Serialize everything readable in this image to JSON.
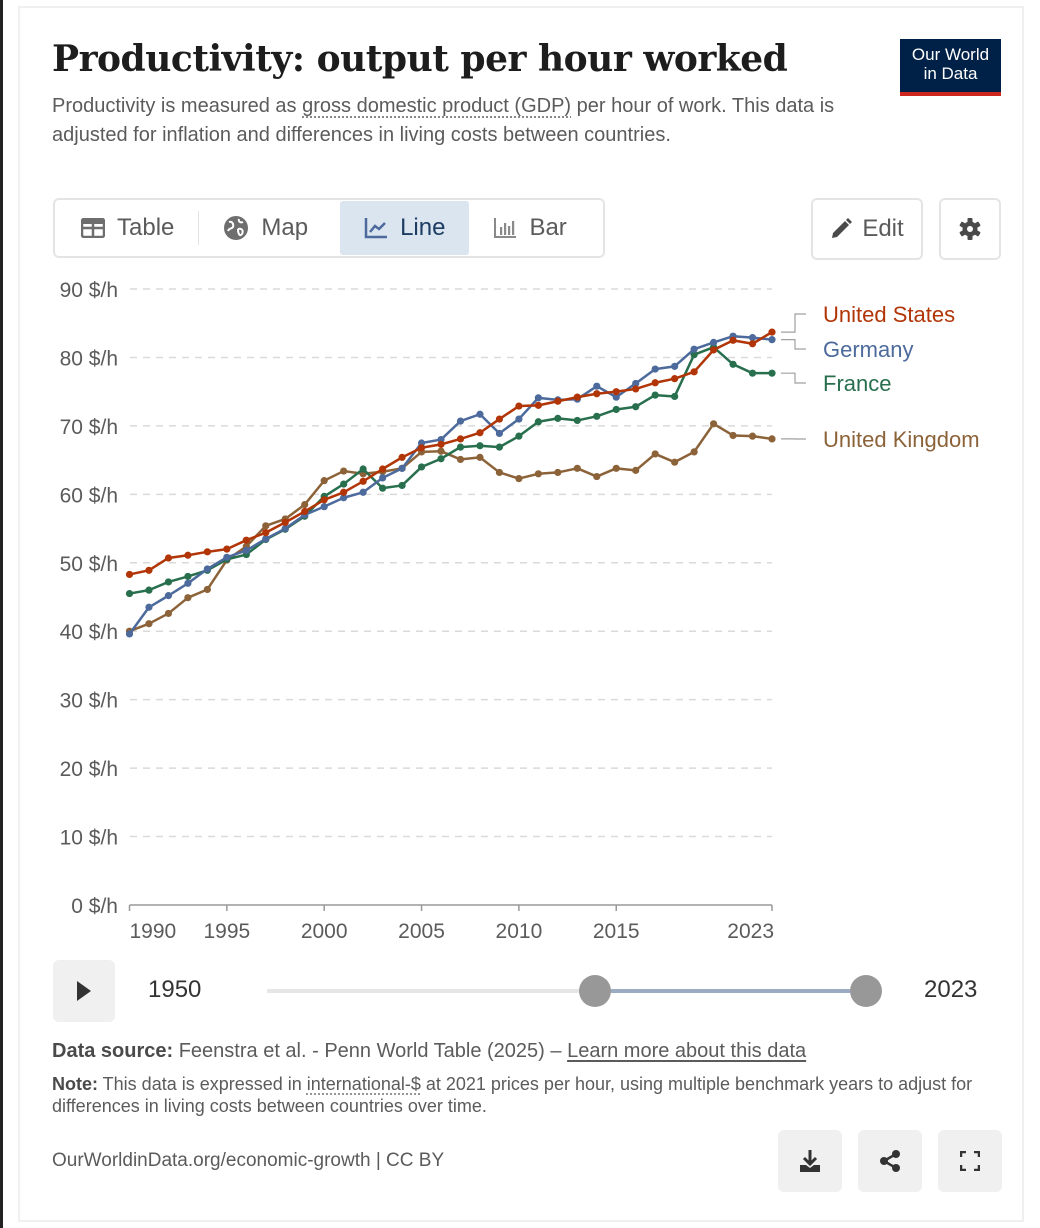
{
  "header": {
    "title": "Productivity: output per hour worked",
    "subtitle_pre": "Productivity is measured as ",
    "subtitle_link": "gross domestic product (GDP)",
    "subtitle_post": " per hour of work. This data is adjusted for inflation and differences in living costs between countries.",
    "logo_line1": "Our World",
    "logo_line2": "in Data"
  },
  "tabs": [
    {
      "label": "Table",
      "icon": "table-icon",
      "active": false
    },
    {
      "label": "Map",
      "icon": "globe-icon",
      "active": false
    },
    {
      "label": "Line",
      "icon": "line-chart-icon",
      "active": true
    },
    {
      "label": "Bar",
      "icon": "bar-chart-icon",
      "active": false
    }
  ],
  "toolbar": {
    "edit_label": "Edit",
    "settings_icon": "gear-icon"
  },
  "colors": {
    "us": "#b13507",
    "germany": "#4c6a9c",
    "france": "#286f4e",
    "uk": "#8c6239",
    "accent_tab": "#dbe5f0"
  },
  "timeline": {
    "start_label": "1950",
    "end_label": "2023",
    "range_start": 1990,
    "range_end": 2023,
    "min": 1950,
    "max": 2023
  },
  "footer": {
    "source_label": "Data source:",
    "source_text": " Feenstra et al. - Penn World Table (2025) – ",
    "source_link": "Learn more about this data",
    "note_label": "Note:",
    "note_pre": " This data is expressed in ",
    "note_link": "international-$",
    "note_post": " at 2021 prices per hour, using multiple benchmark years to adjust for differences in living costs between countries over time.",
    "url": "OurWorldinData.org/economic-growth | CC BY"
  },
  "chart_data": {
    "type": "line",
    "title": "Productivity: output per hour worked",
    "xlabel": "",
    "ylabel": "",
    "ylim": [
      0,
      90
    ],
    "xlim": [
      1990,
      2023
    ],
    "y_ticks": [
      0,
      10,
      20,
      30,
      40,
      50,
      60,
      70,
      80,
      90
    ],
    "y_tick_labels": [
      "0 $/h",
      "10 $/h",
      "20 $/h",
      "30 $/h",
      "40 $/h",
      "50 $/h",
      "60 $/h",
      "70 $/h",
      "80 $/h",
      "90 $/h"
    ],
    "x_ticks": [
      1990,
      1995,
      2000,
      2005,
      2010,
      2015,
      2023
    ],
    "x_tick_labels": [
      "1990",
      "1995",
      "2000",
      "2005",
      "2010",
      "2015",
      "2023"
    ],
    "grid": "horizontal-dashed",
    "legend": "right, labels at line ends",
    "x": [
      1990,
      1991,
      1992,
      1993,
      1994,
      1995,
      1996,
      1997,
      1998,
      1999,
      2000,
      2001,
      2002,
      2003,
      2004,
      2005,
      2006,
      2007,
      2008,
      2009,
      2010,
      2011,
      2012,
      2013,
      2014,
      2015,
      2016,
      2017,
      2018,
      2019,
      2020,
      2021,
      2022,
      2023
    ],
    "series": [
      {
        "name": "United States",
        "color": "#b13507",
        "values": [
          48.3,
          48.9,
          50.7,
          51.1,
          51.6,
          52.0,
          53.3,
          54.4,
          55.9,
          57.5,
          59.2,
          60.3,
          61.9,
          63.7,
          65.4,
          66.8,
          67.3,
          68.1,
          69.0,
          71.0,
          72.9,
          73.0,
          73.6,
          74.2,
          74.7,
          75.0,
          75.4,
          76.3,
          76.9,
          77.9,
          81.1,
          82.5,
          82.0,
          83.7
        ]
      },
      {
        "name": "Germany",
        "color": "#4c6a9c",
        "values": [
          39.6,
          43.5,
          45.2,
          47.0,
          49.1,
          50.8,
          51.8,
          53.5,
          55.0,
          57.0,
          58.2,
          59.5,
          60.3,
          62.4,
          63.8,
          67.5,
          68.0,
          70.7,
          71.7,
          68.9,
          71.0,
          74.1,
          73.8,
          73.9,
          75.8,
          74.2,
          76.2,
          78.3,
          78.7,
          81.2,
          82.2,
          83.1,
          82.9,
          82.6
        ]
      },
      {
        "name": "France",
        "color": "#286f4e",
        "values": [
          45.5,
          46.0,
          47.2,
          48.0,
          48.9,
          50.5,
          51.2,
          53.4,
          54.9,
          56.8,
          59.7,
          61.5,
          63.7,
          60.9,
          61.3,
          64.0,
          65.2,
          66.9,
          67.1,
          66.9,
          68.5,
          70.6,
          71.1,
          70.8,
          71.4,
          72.4,
          72.8,
          74.5,
          74.3,
          80.4,
          81.5,
          79.0,
          77.7,
          77.7
        ]
      },
      {
        "name": "United Kingdom",
        "color": "#8c6239",
        "values": [
          40.0,
          41.1,
          42.6,
          44.9,
          46.1,
          50.4,
          52.4,
          55.4,
          56.4,
          58.5,
          62.0,
          63.4,
          63.0,
          63.3,
          63.8,
          66.2,
          66.3,
          65.1,
          65.4,
          63.2,
          62.3,
          63.0,
          63.2,
          63.8,
          62.6,
          63.8,
          63.5,
          65.9,
          64.7,
          66.2,
          70.3,
          68.6,
          68.5,
          68.1
        ]
      }
    ]
  }
}
